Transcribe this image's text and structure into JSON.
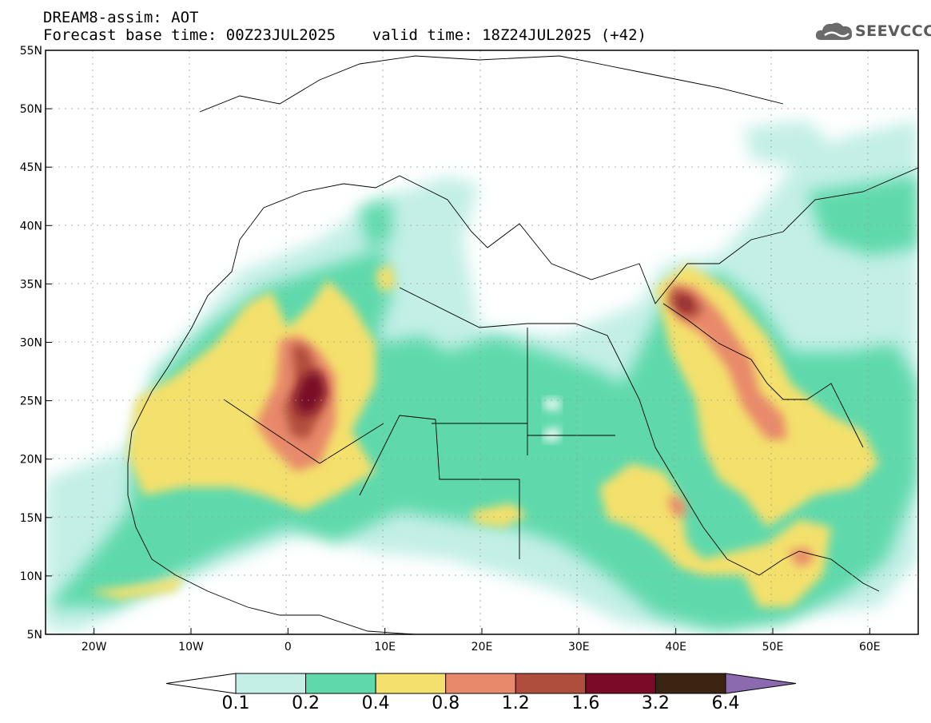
{
  "header": {
    "line1": "DREAM8-assim: AOT",
    "line2": "Forecast base time: 00Z23JUL2025    valid time: 18Z24JUL2025 (+42)"
  },
  "logo": {
    "text": "SEEVCCC",
    "icon": "cloud-logo-icon",
    "color": "#5b5b5b"
  },
  "map": {
    "projection": "lat-lon",
    "lon_range": [
      -25,
      65
    ],
    "lat_range": [
      5,
      55
    ],
    "lon_ticks": [
      {
        "value": -20,
        "label": "20W"
      },
      {
        "value": -10,
        "label": "10W"
      },
      {
        "value": 0,
        "label": "0"
      },
      {
        "value": 10,
        "label": "10E"
      },
      {
        "value": 20,
        "label": "20E"
      },
      {
        "value": 30,
        "label": "30E"
      },
      {
        "value": 40,
        "label": "40E"
      },
      {
        "value": 50,
        "label": "50E"
      },
      {
        "value": 60,
        "label": "60E"
      }
    ],
    "lat_ticks": [
      {
        "value": 55,
        "label": "55N"
      },
      {
        "value": 50,
        "label": "50N"
      },
      {
        "value": 45,
        "label": "45N"
      },
      {
        "value": 40,
        "label": "40N"
      },
      {
        "value": 35,
        "label": "35N"
      },
      {
        "value": 30,
        "label": "30N"
      },
      {
        "value": 25,
        "label": "25N"
      },
      {
        "value": 20,
        "label": "20N"
      },
      {
        "value": 15,
        "label": "15N"
      },
      {
        "value": 10,
        "label": "10N"
      },
      {
        "value": 5,
        "label": "5N"
      }
    ],
    "grid": "dotted"
  },
  "colorbar": {
    "labels": [
      "0.1",
      "0.2",
      "0.4",
      "0.8",
      "1.2",
      "1.6",
      "3.2",
      "6.4"
    ],
    "colors": [
      "#c3efe6",
      "#5fd9ac",
      "#f4e06c",
      "#e8896a",
      "#b04e3d",
      "#7a0a26",
      "#3c2412"
    ],
    "under_color": "#ffffff",
    "over_color": "#8c6ab0"
  }
}
